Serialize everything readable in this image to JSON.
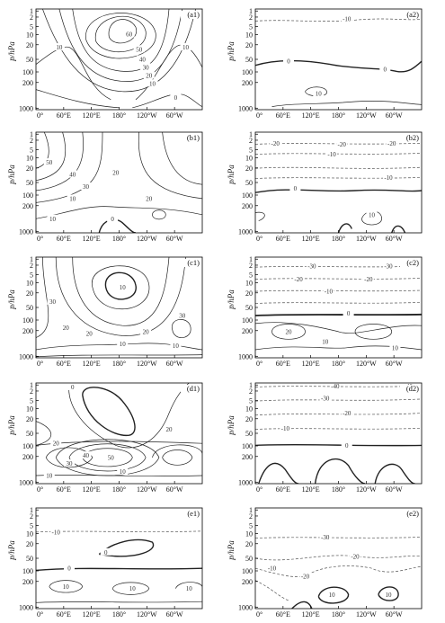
{
  "chart_data": {
    "type": "contour",
    "common": {
      "ylabel": "p/hPa",
      "yticks": [
        "1",
        "2",
        "5",
        "10",
        "20",
        "50",
        "100",
        "200",
        "1000"
      ],
      "xticks": [
        "0°",
        "60°E",
        "120°E",
        "180°",
        "120°W",
        "60°W"
      ]
    },
    "panels": [
      {
        "id": "a1",
        "label": "(a1)",
        "contour_labels": [
          "60",
          "50",
          "40",
          "30",
          "20",
          "10",
          "10",
          "10",
          "0"
        ]
      },
      {
        "id": "a2",
        "label": "(a2)",
        "contour_labels": [
          "-10",
          "0",
          "0",
          "10"
        ]
      },
      {
        "id": "b1",
        "label": "(b1)",
        "contour_labels": [
          "50",
          "40",
          "30",
          "20",
          "10",
          "20",
          "10",
          "0"
        ]
      },
      {
        "id": "b2",
        "label": "(b2)",
        "contour_labels": [
          "-20",
          "-20",
          "-20",
          "-10",
          "-10",
          "0",
          "10"
        ]
      },
      {
        "id": "c1",
        "label": "(c1)",
        "contour_labels": [
          "10",
          "30",
          "20",
          "20",
          "20",
          "10",
          "30",
          "10"
        ]
      },
      {
        "id": "c2",
        "label": "(c2)",
        "contour_labels": [
          "-30",
          "-30",
          "-20",
          "-20",
          "-10",
          "0",
          "20",
          "10",
          "10"
        ]
      },
      {
        "id": "d1",
        "label": "(d1)",
        "contour_labels": [
          "0",
          "20",
          "20",
          "50",
          "40",
          "30",
          "10",
          "10"
        ]
      },
      {
        "id": "d2",
        "label": "(d2)",
        "contour_labels": [
          "-40",
          "-40",
          "-30",
          "-20",
          "-10",
          "0"
        ]
      },
      {
        "id": "e1",
        "label": "(e1)",
        "contour_labels": [
          "-10",
          "0",
          "0",
          "10",
          "10",
          "10"
        ]
      },
      {
        "id": "e2",
        "label": "(e2)",
        "contour_labels": [
          "-30",
          "-20",
          "-20",
          "-10",
          "10",
          "10"
        ]
      }
    ]
  }
}
